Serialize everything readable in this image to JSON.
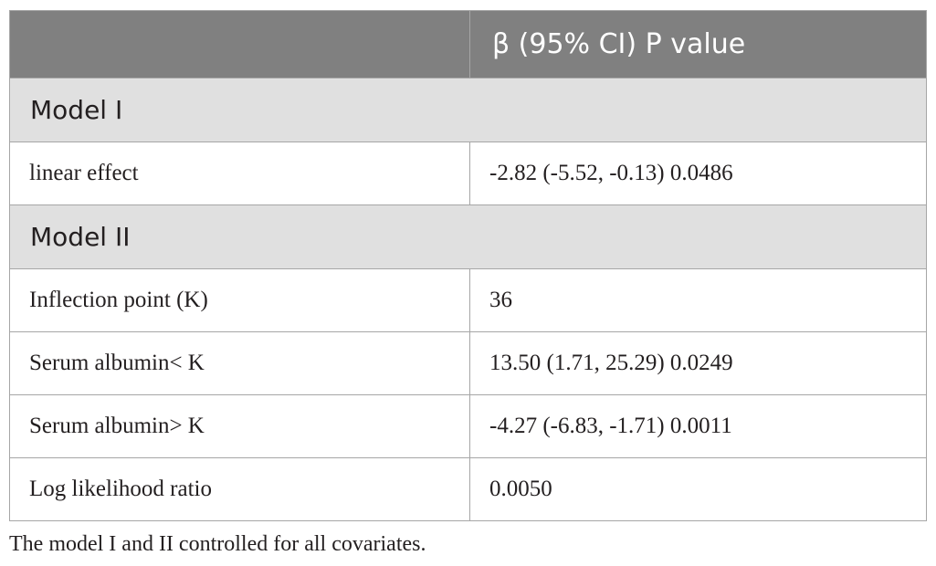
{
  "table": {
    "header": [
      "",
      "β (95% CI) P value"
    ],
    "rows": [
      {
        "type": "section",
        "label": "Model I"
      },
      {
        "type": "data",
        "cells": [
          "linear effect",
          "-2.82 (-5.52, -0.13) 0.0486"
        ]
      },
      {
        "type": "section",
        "label": "Model II"
      },
      {
        "type": "data",
        "cells": [
          "Inflection point (K)",
          "36"
        ]
      },
      {
        "type": "data",
        "cells": [
          "Serum albumin< K",
          "13.50 (1.71, 25.29) 0.0249"
        ]
      },
      {
        "type": "data",
        "cells": [
          "Serum albumin> K",
          "-4.27 (-6.83, -1.71) 0.0011"
        ]
      },
      {
        "type": "data",
        "cells": [
          "Log likelihood ratio",
          "0.0050"
        ]
      }
    ]
  },
  "footnote": "The model I and II controlled for all covariates.",
  "colors": {
    "header_bg": "#808080",
    "header_text": "#ffffff",
    "section_bg": "#e0e0e0",
    "border": "#a6a6a6",
    "text": "#231f20"
  }
}
